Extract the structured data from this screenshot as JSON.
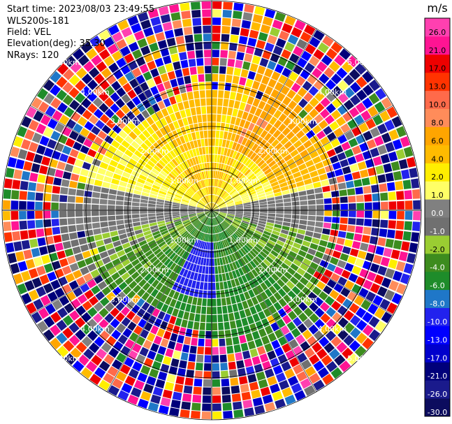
{
  "header": {
    "start_time": "Start time: 2023/08/03 23:49:55",
    "instrument": "WLS200s-181",
    "field": "Field: VEL",
    "elevation": "Elevation(deg): 35.30",
    "nrays": "NRays: 120"
  },
  "chart_data": {
    "type": "heatmap",
    "projection": "polar-ppi",
    "field": "VEL",
    "unit": "m/s",
    "n_rays": 120,
    "elevation_deg": 35.3,
    "range_rings_km": [
      1.0,
      2.0,
      3.0,
      4.0,
      5.0
    ],
    "ring_labels": [
      "1.00km",
      "2.00km",
      "3.00km",
      "4.00km",
      "5.00km"
    ],
    "max_range_km": 5.0,
    "colorbar": {
      "unit": "m/s",
      "boundaries": [
        -30.0,
        -26.0,
        -21.0,
        -17.0,
        -13.0,
        -10.0,
        -8.0,
        -6.0,
        -4.0,
        -2.0,
        -1.0,
        0.0,
        1.0,
        2.0,
        4.0,
        6.0,
        8.0,
        10.0,
        13.0,
        17.0,
        21.0,
        26.0
      ],
      "tick_labels": [
        "-30.0",
        "-26.0",
        "-21.0",
        "-17.0",
        "-13.0",
        "-10.0",
        "-8.0",
        "-6.0",
        "-4.0",
        "-2.0",
        "-1.0",
        "0.0",
        "1.0",
        "2.0",
        "4.0",
        "6.0",
        "8.0",
        "10.0",
        "13.0",
        "17.0",
        "21.0",
        "26.0"
      ],
      "colors": [
        "#0c0c5e",
        "#1a1a8c",
        "#00007a",
        "#0000cc",
        "#0000ff",
        "#2222ee",
        "#1f77c8",
        "#1e8c2a",
        "#3d8c1e",
        "#9acd32",
        "#707070",
        "#808080",
        "#ffff66",
        "#ffee00",
        "#ffbb00",
        "#ffa500",
        "#ff8c5a",
        "#ff6a4a",
        "#ff3300",
        "#ee0000",
        "#ff1493",
        "#ff40b0"
      ]
    }
  }
}
